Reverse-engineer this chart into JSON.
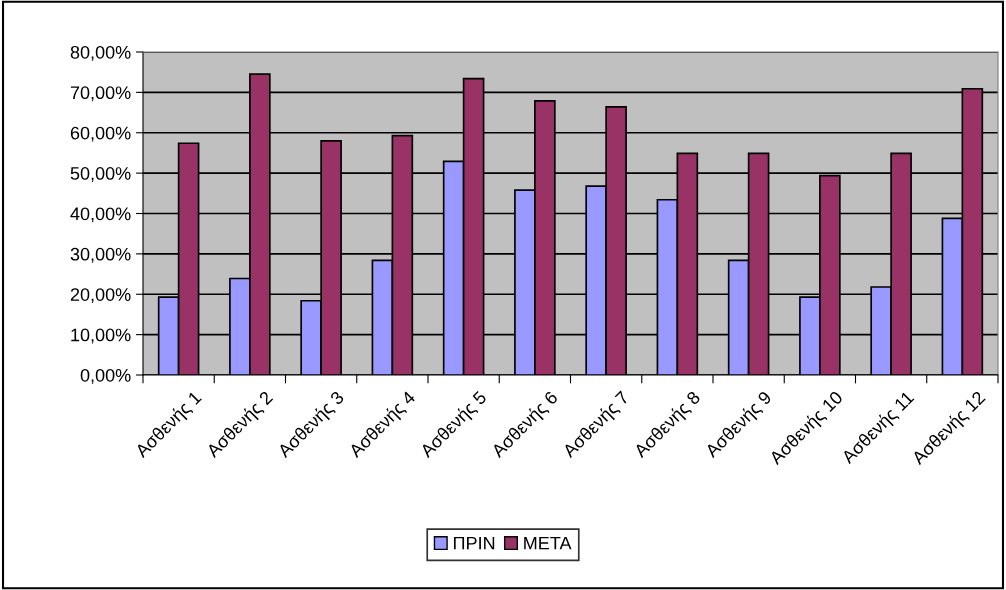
{
  "chart_data": {
    "type": "bar",
    "categories": [
      "Ασθενής 1",
      "Ασθενής 2",
      "Ασθενής 3",
      "Ασθενής 4",
      "Ασθενής 5",
      "Ασθενής 6",
      "Ασθενής 7",
      "Ασθενής 8",
      "Ασθενής 9",
      "Ασθενής 10",
      "Ασθενής 11",
      "Ασθενής 12"
    ],
    "series": [
      {
        "name": "ΠΡΙΝ",
        "color": "#9999ff",
        "values": [
          19.3,
          23.9,
          18.4,
          28.4,
          52.9,
          45.8,
          46.8,
          43.4,
          28.4,
          19.3,
          21.8,
          38.8
        ]
      },
      {
        "name": "ΜΕΤΑ",
        "color": "#993366",
        "values": [
          57.4,
          74.5,
          58.0,
          59.3,
          73.4,
          67.9,
          66.4,
          54.9,
          54.9,
          49.4,
          54.9,
          70.9
        ]
      }
    ],
    "ylim": [
      0,
      80
    ],
    "yticks": [
      {
        "value": 0,
        "label": "0,00%"
      },
      {
        "value": 10,
        "label": "10,00%"
      },
      {
        "value": 20,
        "label": "20,00%"
      },
      {
        "value": 30,
        "label": "30,00%"
      },
      {
        "value": 40,
        "label": "40,00%"
      },
      {
        "value": 50,
        "label": "50,00%"
      },
      {
        "value": 60,
        "label": "60,00%"
      },
      {
        "value": 70,
        "label": "70,00%"
      },
      {
        "value": 80,
        "label": "80,00%"
      }
    ],
    "grid": "y",
    "legend": "bottom"
  }
}
